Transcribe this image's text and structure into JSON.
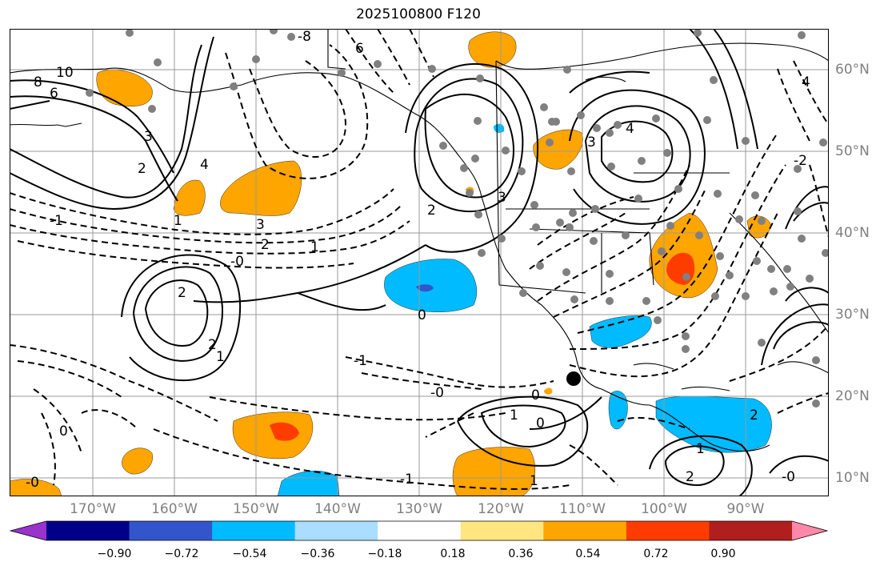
{
  "title": "2025100800 F120",
  "lat_labels": [
    "60°N",
    "50°N",
    "40°N",
    "30°N",
    "20°N",
    "10°N"
  ],
  "lon_labels": [
    "170°W",
    "160°W",
    "150°W",
    "140°W",
    "130°W",
    "120°W",
    "110°W",
    "100°W",
    "90°W"
  ],
  "colorbar": {
    "colors": [
      "#9933cc",
      "#000088",
      "#3355cc",
      "#00bbff",
      "#aaddff",
      "#ffffff",
      "#ffe680",
      "#ffa500",
      "#ff3c00",
      "#b01e1e",
      "#ff88aa"
    ],
    "tick_labels": [
      "−0.90",
      "−0.72",
      "−0.54",
      "−0.36",
      "−0.18",
      "0.18",
      "0.36",
      "0.54",
      "0.72",
      "0.90"
    ]
  },
  "contour_labels": [
    "10",
    "8",
    "6",
    "-8",
    "6",
    "3",
    "4",
    "3",
    "4",
    "3",
    "2",
    "1",
    "2",
    "-1",
    "3",
    "2",
    "1",
    "-0",
    "2",
    "2",
    "1",
    "0",
    "-1",
    "-0",
    "0",
    "1",
    "0",
    "1",
    "2",
    "-1",
    "-0",
    "0",
    "-0",
    "2",
    "-2",
    "1",
    "4"
  ]
}
